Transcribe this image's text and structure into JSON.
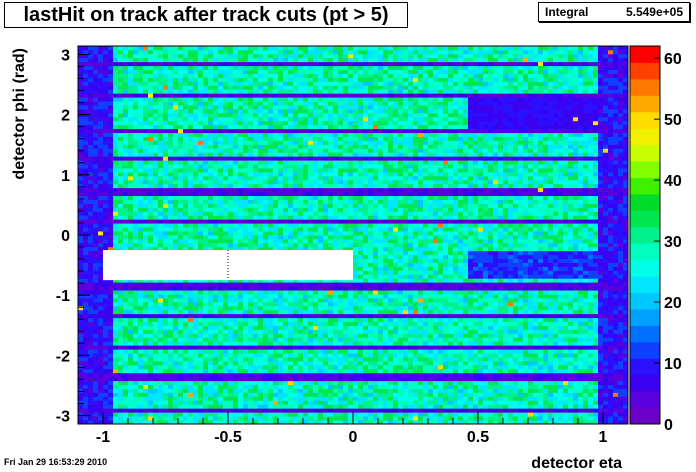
{
  "chart_data": {
    "type": "heatmap",
    "title": "lastHit on track after track cuts (pt > 5)",
    "stats": {
      "label": "Integral",
      "value": "5.549e+05"
    },
    "xlabel": "detector eta",
    "ylabel": "detector phi (rad)",
    "xlim": [
      -1.1,
      1.1
    ],
    "ylim": [
      -3.14,
      3.14
    ],
    "x_ticks": [
      -1,
      -0.5,
      0,
      0.5,
      1
    ],
    "x_tick_labels": [
      "-1",
      "-0.5",
      "0",
      "0.5",
      "1"
    ],
    "y_ticks": [
      -3,
      -2,
      -1,
      0,
      1,
      2,
      3
    ],
    "y_tick_labels": [
      "-3",
      "-2",
      "-1",
      "0",
      "1",
      "2",
      "3"
    ],
    "zlim": [
      0,
      62
    ],
    "z_ticks": [
      0,
      10,
      20,
      30,
      40,
      50,
      60
    ],
    "z_tick_labels": [
      "0",
      "10",
      "20",
      "30",
      "40",
      "50",
      "60"
    ],
    "bins": {
      "nx": 110,
      "ny": 96
    },
    "typical_value": 28,
    "phi_gaps": [
      -2.9,
      -2.36,
      -1.86,
      -1.35,
      -0.85,
      0.21,
      0.72,
      1.25,
      1.75,
      2.3,
      2.85
    ],
    "empty_regions": [
      {
        "eta": [
          -1.0,
          0.0
        ],
        "phi": [
          -0.75,
          -0.25
        ]
      }
    ],
    "low_regions": [
      {
        "eta": [
          0.45,
          1.0
        ],
        "phi": [
          1.75,
          2.3
        ],
        "value": 8
      },
      {
        "eta": [
          0.45,
          1.0
        ],
        "phi": [
          -0.75,
          -0.25
        ],
        "value": 11
      }
    ],
    "edge_eta_low": [
      -1.1,
      -0.97
    ],
    "edge_eta_high": [
      0.98,
      1.1
    ],
    "edge_value": 9
  },
  "palette": [
    "#6a00c8",
    "#5a00dc",
    "#3c00f0",
    "#2a10ff",
    "#1040ff",
    "#0070ff",
    "#00a0ff",
    "#00c8ff",
    "#00e6ff",
    "#00ffe6",
    "#00ffbe",
    "#00f08c",
    "#00e650",
    "#00dc28",
    "#3cf000",
    "#82ff00",
    "#c8ff00",
    "#f0f000",
    "#ffdc00",
    "#ffaa00",
    "#ff7800",
    "#ff4000",
    "#ff0000"
  ],
  "date_stamp": "Fri Jan 29 16:53:29 2010",
  "footer": ""
}
